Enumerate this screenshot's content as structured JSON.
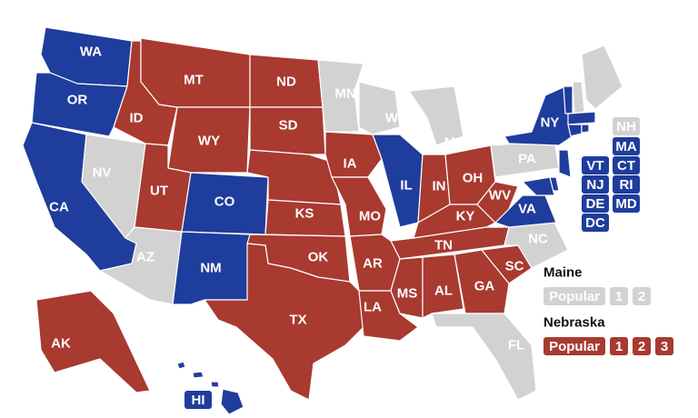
{
  "map": {
    "colors": {
      "dem": "#1f3d9c",
      "rep": "#a83a30",
      "none": "#d2d2d2"
    },
    "states": [
      {
        "label": "WA",
        "party": "dem"
      },
      {
        "label": "OR",
        "party": "dem"
      },
      {
        "label": "CA",
        "party": "dem"
      },
      {
        "label": "NV",
        "party": "none"
      },
      {
        "label": "ID",
        "party": "rep"
      },
      {
        "label": "MT",
        "party": "rep"
      },
      {
        "label": "WY",
        "party": "rep"
      },
      {
        "label": "UT",
        "party": "rep"
      },
      {
        "label": "AZ",
        "party": "none"
      },
      {
        "label": "CO",
        "party": "dem"
      },
      {
        "label": "NM",
        "party": "dem"
      },
      {
        "label": "ND",
        "party": "rep"
      },
      {
        "label": "SD",
        "party": "rep"
      },
      {
        "party": "rep"
      },
      {
        "label": "KS",
        "party": "rep"
      },
      {
        "label": "OK",
        "party": "rep"
      },
      {
        "label": "TX",
        "party": "rep"
      },
      {
        "label": "MN",
        "party": "none"
      },
      {
        "label": "IA",
        "party": "rep"
      },
      {
        "label": "MO",
        "party": "rep"
      },
      {
        "label": "WI",
        "party": "none"
      },
      {
        "label": "IL",
        "party": "dem"
      },
      {
        "label": "MI",
        "party": "none"
      },
      {
        "label": "IN",
        "party": "rep"
      },
      {
        "label": "OH",
        "party": "rep"
      },
      {
        "label": "KY",
        "party": "rep"
      },
      {
        "label": "TN",
        "party": "rep"
      },
      {
        "label": "AR",
        "party": "rep"
      },
      {
        "label": "LA",
        "party": "rep"
      },
      {
        "label": "MS",
        "party": "rep"
      },
      {
        "label": "AL",
        "party": "rep"
      },
      {
        "label": "GA",
        "party": "rep"
      },
      {
        "label": "FL",
        "party": "none"
      },
      {
        "label": "SC",
        "party": "rep"
      },
      {
        "label": "NC",
        "party": "none"
      },
      {
        "label": "VA",
        "party": "dem"
      },
      {
        "label": "WV",
        "party": "rep"
      },
      {
        "label": "PA",
        "party": "none"
      },
      {
        "label": "NY",
        "party": "dem"
      },
      {
        "party": "none"
      },
      {
        "label": "VT",
        "party": "dem"
      },
      {
        "label": "NH",
        "party": "none"
      },
      {
        "label": "MA",
        "party": "dem"
      },
      {
        "label": "CT",
        "party": "dem"
      },
      {
        "label": "RI",
        "party": "dem"
      },
      {
        "label": "NJ",
        "party": "dem"
      },
      {
        "label": "DE",
        "party": "dem"
      },
      {
        "label": "MD",
        "party": "dem"
      },
      {
        "label": "DC",
        "party": "dem"
      },
      {
        "label": "AK",
        "party": "rep"
      },
      {
        "label": "HI",
        "party": "dem"
      }
    ],
    "split_states": [
      {
        "title": "Maine",
        "items": [
          {
            "label": "Popular",
            "party": "none"
          },
          {
            "label": "1",
            "party": "none"
          },
          {
            "label": "2",
            "party": "none"
          }
        ]
      },
      {
        "title": "Nebraska",
        "items": [
          {
            "label": "Popular",
            "party": "rep"
          },
          {
            "label": "1",
            "party": "rep"
          },
          {
            "label": "2",
            "party": "rep"
          },
          {
            "label": "3",
            "party": "rep"
          }
        ]
      }
    ]
  }
}
